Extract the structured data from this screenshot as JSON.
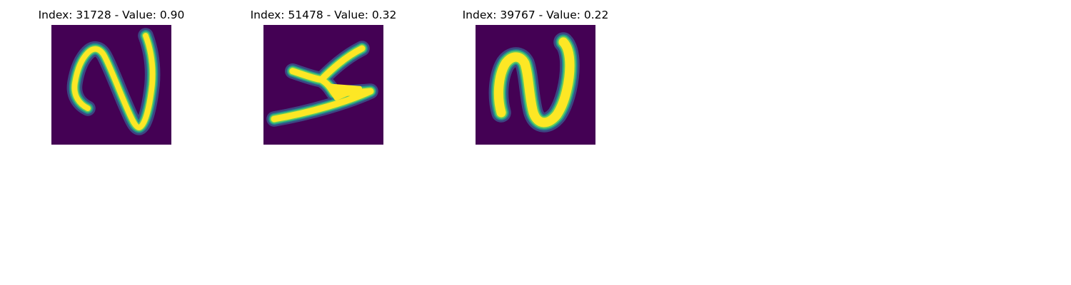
{
  "figure": {
    "panels": [
      {
        "title": "Index: 31728 - Value: 0.90",
        "index": 31728,
        "value": 0.9,
        "image_content": "handwritten-digit-2"
      },
      {
        "title": "Index: 51478 - Value: 0.32",
        "index": 51478,
        "value": 0.32,
        "image_content": "handwritten-digit-rotated"
      },
      {
        "title": "Index: 39767 - Value: 0.22",
        "index": 39767,
        "value": 0.22,
        "image_content": "handwritten-digit-2"
      }
    ],
    "colors": {
      "background": "#440154",
      "edge_dark": "#3b528b",
      "edge_mid": "#21918c",
      "edge_light": "#5ec962",
      "stroke": "#fde725"
    }
  }
}
